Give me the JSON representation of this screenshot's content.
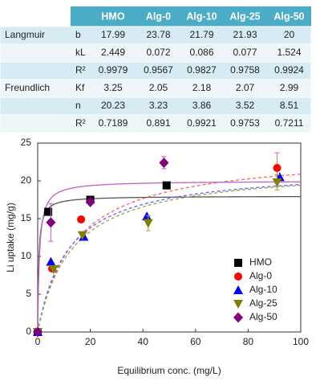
{
  "table": {
    "header": [
      "HMO",
      "Alg-0",
      "Alg-10",
      "Alg-25",
      "Alg-50"
    ],
    "groups": [
      {
        "name": "Langmuir",
        "rows": [
          {
            "param": "b",
            "values": [
              17.99,
              23.78,
              21.79,
              21.93,
              20
            ]
          },
          {
            "param": "kL",
            "values": [
              2.449,
              0.072,
              0.086,
              0.077,
              1.524
            ]
          },
          {
            "param": "R²",
            "values": [
              0.9979,
              0.9567,
              0.9827,
              0.9758,
              0.9924
            ]
          }
        ]
      },
      {
        "name": "Freundlich",
        "rows": [
          {
            "param": "Kf",
            "values": [
              3.25,
              2.05,
              2.18,
              2.07,
              2.99
            ]
          },
          {
            "param": "n",
            "values": [
              20.23,
              3.23,
              3.86,
              3.52,
              8.51
            ]
          },
          {
            "param": "R²",
            "values": [
              0.7189,
              0.891,
              0.9921,
              0.9753,
              0.7211
            ]
          }
        ]
      }
    ]
  },
  "chart_data": {
    "type": "scatter",
    "x_label": "Equilibrium conc. (mg/L)",
    "y_label": "Li uptake (mg/g)",
    "xlim": [
      0,
      100
    ],
    "xticks": [
      0,
      20,
      40,
      60,
      80,
      100
    ],
    "ylim": [
      0,
      25
    ],
    "yticks": [
      0,
      5,
      10,
      15,
      20,
      25
    ],
    "legend": "lower right",
    "grid": false,
    "series": [
      {
        "name": "HMO",
        "color": "#000000",
        "fit_color": "#555555",
        "fit_dashed": false,
        "marker": "square",
        "x": [
          0,
          4,
          20,
          49
        ],
        "values": [
          0,
          15.9,
          17.5,
          19.4
        ],
        "errors": [
          null,
          null,
          null,
          null
        ]
      },
      {
        "name": "Alg-0",
        "color": "#ff0000",
        "fit_color": "#ff6060",
        "fit_dashed": true,
        "marker": "circle",
        "x": [
          0,
          5.5,
          16.5,
          91
        ],
        "values": [
          0,
          8.4,
          14.9,
          21.7
        ],
        "errors": [
          null,
          null,
          null,
          2
        ]
      },
      {
        "name": "Alg-10",
        "color": "#0000ff",
        "fit_color": "#6060ff",
        "fit_dashed": true,
        "marker": "triangle",
        "x": [
          0,
          5,
          17.5,
          41.5,
          92
        ],
        "values": [
          0,
          9.3,
          12.6,
          15.3,
          20.5
        ],
        "errors": [
          null,
          null,
          null,
          null,
          null
        ]
      },
      {
        "name": "Alg-25",
        "color": "#808000",
        "fit_color": "#a0a040",
        "fit_dashed": true,
        "marker": "triangle-down",
        "x": [
          0,
          6,
          17,
          42,
          91
        ],
        "values": [
          0,
          8.3,
          12.8,
          14.4,
          19.8
        ],
        "errors": [
          null,
          null,
          null,
          1,
          1
        ]
      },
      {
        "name": "Alg-50",
        "color": "#800080",
        "fit_color": "#c060c0",
        "fit_dashed": false,
        "marker": "diamond",
        "x": [
          0,
          5,
          20,
          48
        ],
        "values": [
          0,
          14.5,
          17.2,
          22.4
        ],
        "errors": [
          null,
          2.5,
          null,
          0.8
        ]
      }
    ]
  }
}
